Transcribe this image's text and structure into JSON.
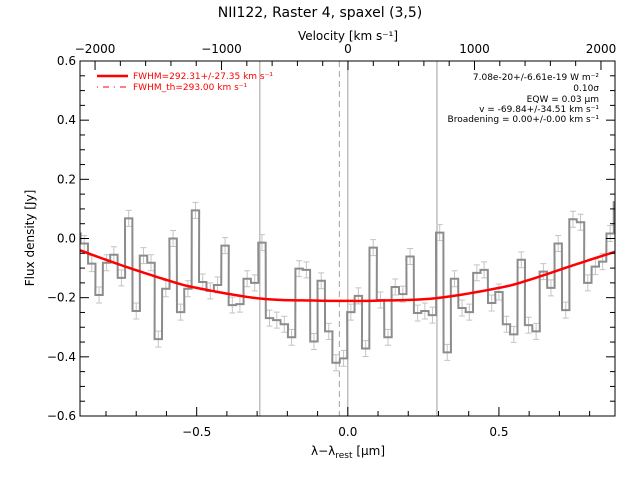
{
  "chart_data": {
    "type": "line",
    "title": "NII122, Raster 4, spaxel (3,5)",
    "xlabel": {
      "main": "λ−λ",
      "sub": "rest",
      "tail": " [μm]"
    },
    "ylabel": "Flux density [Jy]",
    "top_xlabel": "Velocity [km s⁻¹]",
    "xlim": [
      -0.886,
      0.884
    ],
    "ylim": [
      -0.6,
      0.6
    ],
    "top_xlim": [
      -2119,
      2111
    ],
    "x_ticks": [
      -0.5,
      0.0,
      0.5
    ],
    "x_tick_labels": [
      "−0.5",
      "0.0",
      "0.5"
    ],
    "x_minor_step": 0.1,
    "y_ticks": [
      -0.6,
      -0.4,
      -0.2,
      0.0,
      0.2,
      0.4,
      0.6
    ],
    "y_tick_labels": [
      "−0.6",
      "−0.4",
      "−0.2",
      "0.0",
      "0.2",
      "0.4",
      "0.6"
    ],
    "y_minor_step": 0.05,
    "top_ticks": [
      -2000,
      -1000,
      0,
      1000,
      2000
    ],
    "top_tick_labels": [
      "−2000",
      "−1000",
      "0",
      "1000",
      "2000"
    ],
    "top_minor_step": 200,
    "grid": false,
    "legend_position": "top-left",
    "colors": {
      "data": "#8c8c8c",
      "errors": "#c4c4c4",
      "fit": "#ff0000",
      "vlines": "#a0a0a0"
    },
    "spectrum": {
      "style": "step-with-errorbars",
      "error": 0.027,
      "x": [
        -0.896,
        -0.872,
        -0.847,
        -0.823,
        -0.798,
        -0.774,
        -0.749,
        -0.725,
        -0.7,
        -0.676,
        -0.651,
        -0.627,
        -0.602,
        -0.578,
        -0.553,
        -0.529,
        -0.504,
        -0.48,
        -0.455,
        -0.431,
        -0.406,
        -0.382,
        -0.357,
        -0.333,
        -0.308,
        -0.284,
        -0.259,
        -0.235,
        -0.21,
        -0.186,
        -0.161,
        -0.137,
        -0.112,
        -0.088,
        -0.063,
        -0.039,
        -0.014,
        0.01,
        0.035,
        0.059,
        0.084,
        0.108,
        0.133,
        0.157,
        0.182,
        0.206,
        0.231,
        0.255,
        0.28,
        0.304,
        0.329,
        0.353,
        0.378,
        0.402,
        0.427,
        0.451,
        0.476,
        0.5,
        0.525,
        0.549,
        0.574,
        0.598,
        0.623,
        0.647,
        0.672,
        0.696,
        0.721,
        0.745,
        0.77,
        0.794,
        0.819,
        0.843,
        0.868,
        0.892
      ],
      "y": [
        0.017,
        -0.017,
        -0.085,
        -0.191,
        -0.082,
        -0.055,
        -0.133,
        0.068,
        -0.245,
        -0.058,
        -0.082,
        -0.34,
        -0.17,
        0.0,
        -0.249,
        -0.17,
        0.095,
        -0.147,
        -0.177,
        -0.157,
        -0.024,
        -0.225,
        -0.222,
        -0.136,
        -0.15,
        -0.014,
        -0.269,
        -0.276,
        -0.29,
        -0.334,
        -0.102,
        -0.106,
        -0.348,
        -0.143,
        -0.314,
        -0.42,
        -0.405,
        -0.249,
        -0.194,
        -0.372,
        -0.031,
        -0.208,
        -0.334,
        -0.164,
        -0.188,
        -0.061,
        -0.252,
        -0.245,
        -0.259,
        0.02,
        -0.385,
        -0.136,
        -0.235,
        -0.249,
        -0.116,
        -0.106,
        -0.218,
        -0.181,
        -0.29,
        -0.324,
        -0.072,
        -0.293,
        -0.314,
        -0.112,
        -0.167,
        -0.017,
        -0.242,
        0.065,
        0.055,
        -0.15,
        -0.095,
        -0.078,
        0.017,
        0.123
      ]
    },
    "fit": {
      "x": [
        -0.886,
        -0.75,
        -0.6,
        -0.5,
        -0.29,
        -0.1,
        0.0,
        0.1,
        0.29,
        0.5,
        0.6,
        0.75,
        0.884
      ],
      "y": [
        -0.04,
        -0.09,
        -0.14,
        -0.167,
        -0.203,
        -0.21,
        -0.211,
        -0.21,
        -0.202,
        -0.167,
        -0.14,
        -0.089,
        -0.045
      ]
    },
    "vertical_lines": [
      {
        "x": -0.291,
        "style": "solid"
      },
      {
        "x": 0.0,
        "style": "solid"
      },
      {
        "x": 0.295,
        "style": "solid"
      },
      {
        "x": -0.028,
        "style": "dashed"
      }
    ],
    "legend": [
      {
        "label": "FWHM=292.31+/-27.35 km s⁻¹",
        "style": "solid"
      },
      {
        "label": "FWHM_th=293.00 km s⁻¹",
        "style": "dashed"
      }
    ],
    "annotations": [
      "7.08e-20+/-6.61e-19 W m⁻²",
      "0.10σ",
      "EQW = 0.03 μm",
      "v = -69.84+/-34.51 km s⁻¹",
      "Broadening = 0.00+/-0.00 km s⁻¹"
    ]
  }
}
